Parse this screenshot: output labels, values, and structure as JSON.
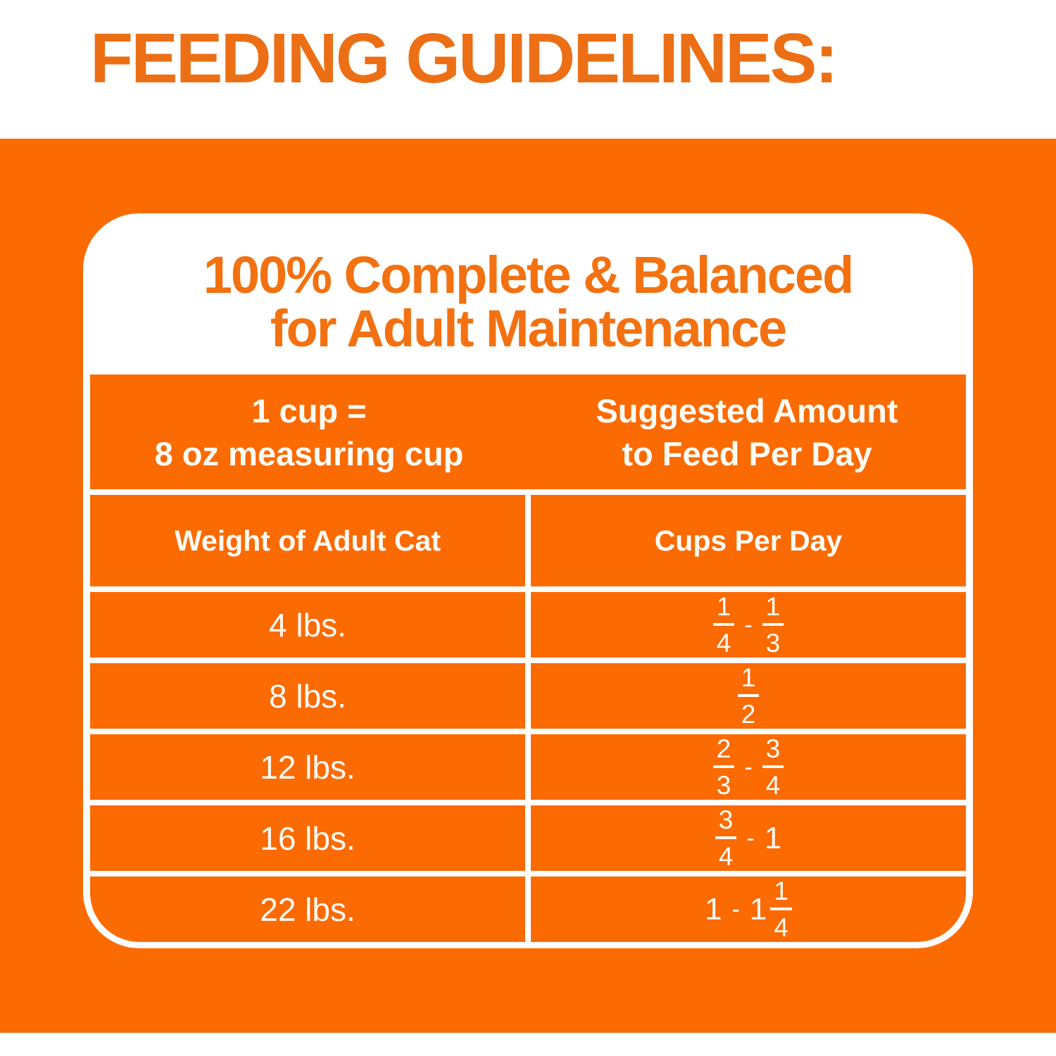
{
  "colors": {
    "orange_bg": "#FC6A02",
    "heading_orange": "#EC6F15",
    "card_title_orange": "#F37110",
    "white": "#FFFFFF",
    "text_white": "#FFFEF8"
  },
  "page": {
    "heading": "FEEDING GUIDELINES:"
  },
  "card": {
    "title_line1": "100% Complete & Balanced",
    "title_line2": "for Adult Maintenance",
    "table": {
      "header1": {
        "left_line1": "1 cup =",
        "left_line2": "8 oz measuring cup",
        "right_line1": "Suggested Amount",
        "right_line2": "to Feed Per Day"
      },
      "header2": {
        "left": "Weight of Adult Cat",
        "right": "Cups Per Day"
      },
      "rows": [
        {
          "weight": "4 lbs.",
          "cups": [
            {
              "t": "frac",
              "n": "1",
              "d": "4"
            },
            {
              "t": "text",
              "v": "-"
            },
            {
              "t": "frac",
              "n": "1",
              "d": "3"
            }
          ]
        },
        {
          "weight": "8 lbs.",
          "cups": [
            {
              "t": "frac",
              "n": "1",
              "d": "2"
            }
          ]
        },
        {
          "weight": "12 lbs.",
          "cups": [
            {
              "t": "frac",
              "n": "2",
              "d": "3"
            },
            {
              "t": "text",
              "v": "-"
            },
            {
              "t": "frac",
              "n": "3",
              "d": "4"
            }
          ]
        },
        {
          "weight": "16 lbs.",
          "cups": [
            {
              "t": "frac",
              "n": "3",
              "d": "4"
            },
            {
              "t": "text",
              "v": "-"
            },
            {
              "t": "text",
              "v": "1"
            }
          ]
        },
        {
          "weight": "22 lbs.",
          "cups": [
            {
              "t": "text",
              "v": "1"
            },
            {
              "t": "text",
              "v": "-"
            },
            {
              "t": "mix",
              "whole": "1",
              "n": "1",
              "d": "4"
            }
          ]
        }
      ]
    }
  },
  "chart_data": {
    "type": "table",
    "title": "100% Complete & Balanced for Adult Maintenance",
    "note": "1 cup = 8 oz measuring cup",
    "columns": [
      "Weight of Adult Cat",
      "Cups Per Day (Suggested Amount to Feed Per Day)"
    ],
    "rows": [
      [
        "4 lbs.",
        "1/4 - 1/3"
      ],
      [
        "8 lbs.",
        "1/2"
      ],
      [
        "12 lbs.",
        "2/3 - 3/4"
      ],
      [
        "16 lbs.",
        "3/4 - 1"
      ],
      [
        "22 lbs.",
        "1 - 1 1/4"
      ]
    ]
  }
}
